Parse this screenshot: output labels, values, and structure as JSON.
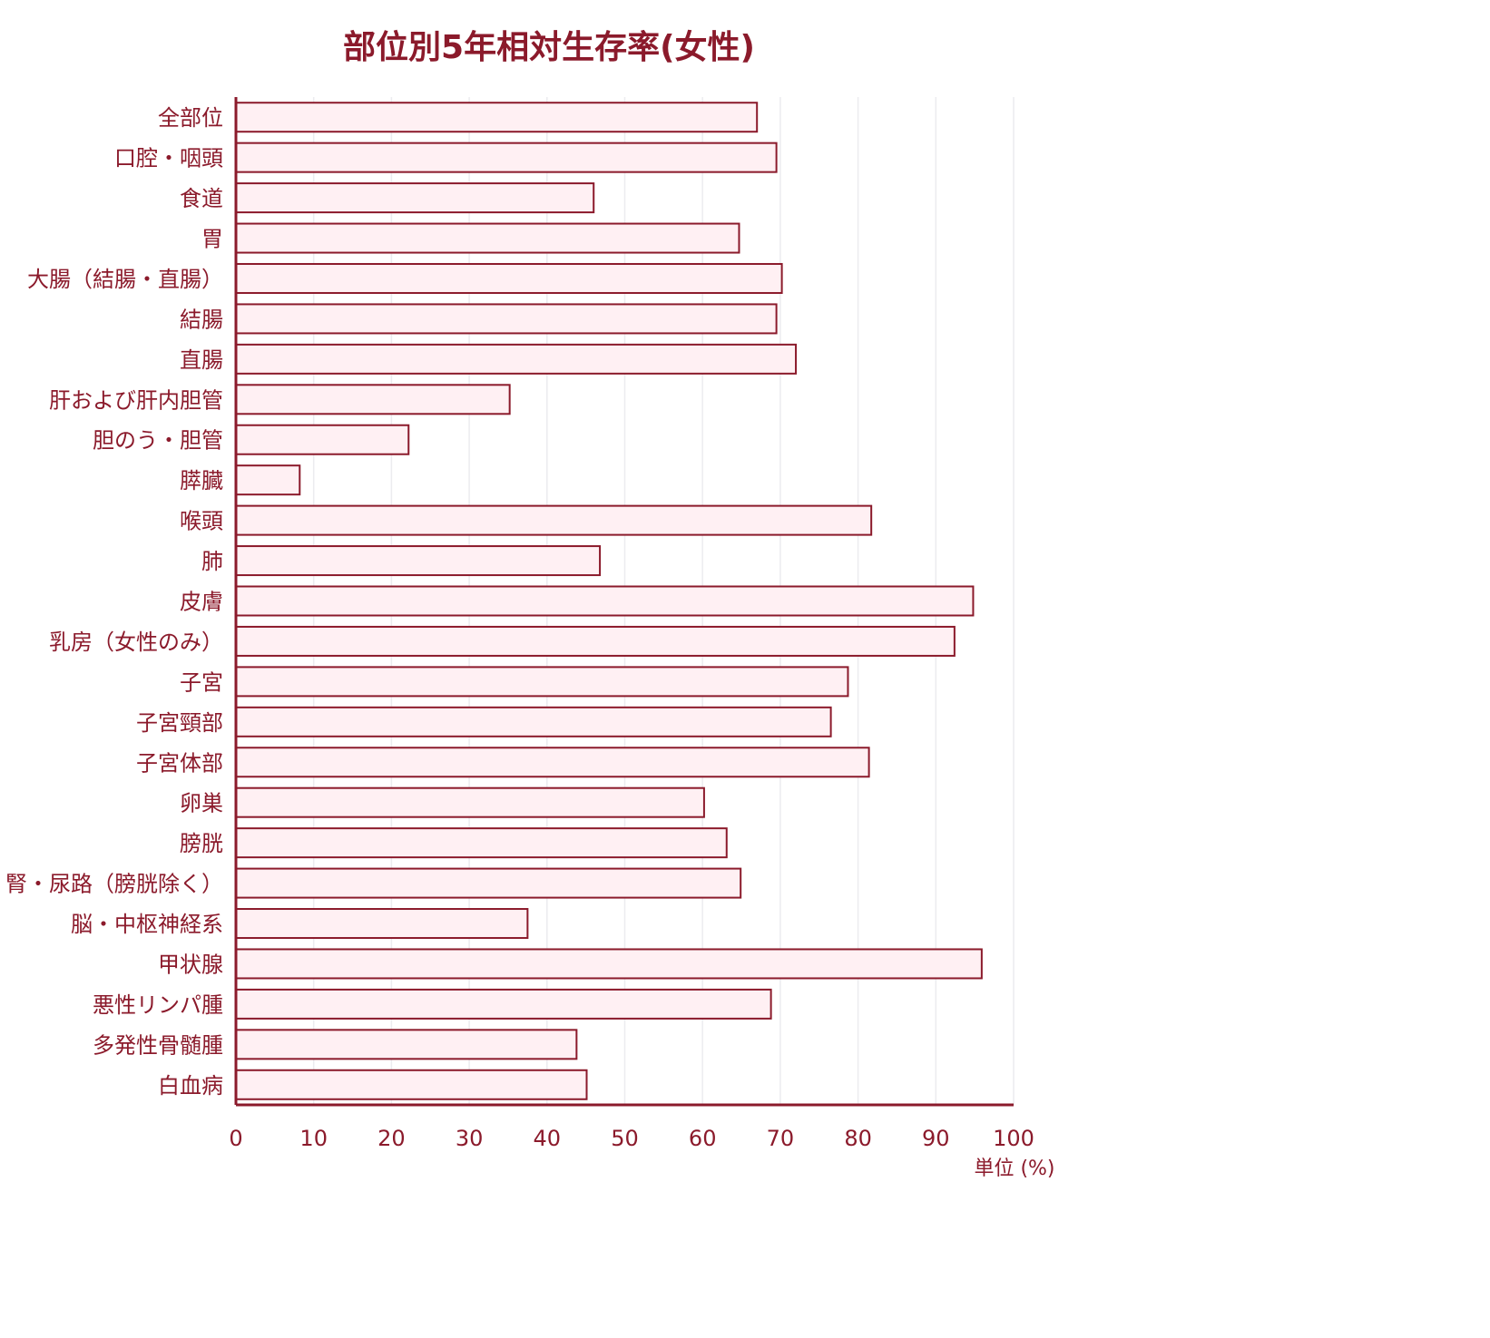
{
  "chart_data": {
    "type": "bar",
    "orientation": "horizontal",
    "title": "部位別5年相対生存率(女性)",
    "xlabel": "",
    "ylabel": "",
    "unit_label": "単位 (%)",
    "xlim": [
      0,
      100
    ],
    "xticks": [
      0,
      10,
      20,
      30,
      40,
      50,
      60,
      70,
      80,
      90,
      100
    ],
    "grid": true,
    "categories": [
      "全部位",
      "口腔・咽頭",
      "食道",
      "胃",
      "大腸（結腸・直腸）",
      "結腸",
      "直腸",
      "肝および肝内胆管",
      "胆のう・胆管",
      "膵臓",
      "喉頭",
      "肺",
      "皮膚",
      "乳房（女性のみ）",
      "子宮",
      "子宮頸部",
      "子宮体部",
      "卵巣",
      "膀胱",
      "腎・尿路（膀胱除く）",
      "脳・中枢神経系",
      "甲状腺",
      "悪性リンパ腫",
      "多発性骨髄腫",
      "白血病"
    ],
    "values": [
      67.0,
      69.5,
      46.0,
      64.7,
      70.2,
      69.5,
      72.0,
      35.2,
      22.2,
      8.2,
      81.7,
      46.8,
      94.8,
      92.4,
      78.7,
      76.5,
      81.4,
      60.2,
      63.1,
      64.9,
      37.5,
      95.9,
      68.8,
      43.8,
      45.1
    ],
    "colors": {
      "text": "#8b1a2b",
      "bar_fill": "#fff0f3",
      "bar_stroke": "#8b1a2b",
      "grid": "#ececef"
    }
  }
}
